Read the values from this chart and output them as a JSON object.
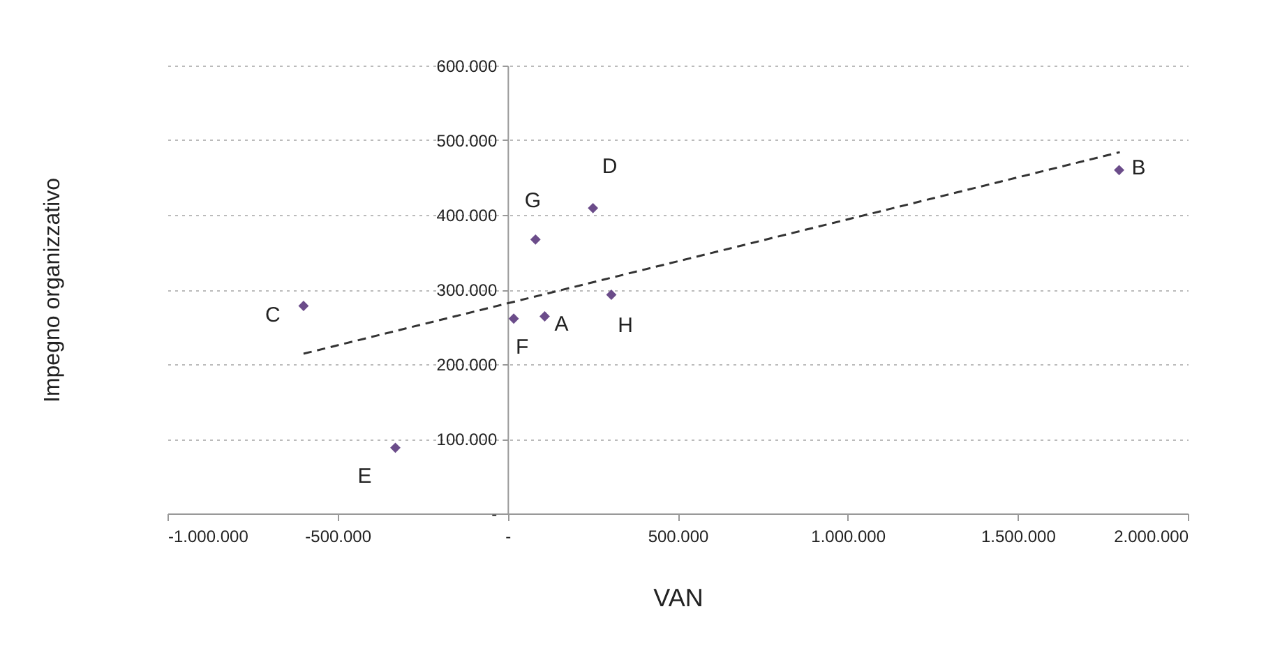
{
  "chart_data": {
    "type": "scatter",
    "xlabel": "VAN",
    "ylabel": "Impegno organizzativo",
    "series": [
      {
        "color": "#6b4c8a",
        "marker": "diamond",
        "x": [
          109000,
          1798000,
          -600000,
          251000,
          -330000,
          18000,
          82000,
          305000
        ],
        "values": [
          264000,
          460000,
          278000,
          409000,
          88000,
          261000,
          367000,
          293000
        ]
      },
      {
        "type": "line",
        "color": "#333333",
        "marker": "none",
        "line_style": "dashed",
        "x": [
          -600000,
          1800000
        ],
        "values": [
          214000,
          484000
        ]
      }
    ],
    "annotations": [
      {
        "text": "A",
        "x": 109000,
        "y": 264000
      },
      {
        "text": "B",
        "x": 1798000,
        "y": 460000
      },
      {
        "text": "C",
        "x": -600000,
        "y": 278000
      },
      {
        "text": "D",
        "x": 251000,
        "y": 409000
      },
      {
        "text": "E",
        "x": -330000,
        "y": 88000
      },
      {
        "text": "F",
        "x": 18000,
        "y": 261000
      },
      {
        "text": "G",
        "x": 82000,
        "y": 367000
      },
      {
        "text": "H",
        "x": 305000,
        "y": 293000
      }
    ],
    "xlim": [
      -1000000,
      2000000
    ],
    "xticks": [
      {
        "value": -1000000,
        "label": "-1.000.000"
      },
      {
        "value": -500000,
        "label": "-500.000"
      },
      {
        "value": 0,
        "label": "-"
      },
      {
        "value": 500000,
        "label": "500.000"
      },
      {
        "value": 1000000,
        "label": "1.000.000"
      },
      {
        "value": 1500000,
        "label": "1.500.000"
      },
      {
        "value": 2000000,
        "label": "2.000.000"
      }
    ],
    "ylim": [
      0,
      600000
    ],
    "yticks": [
      {
        "value": 0,
        "label": "-"
      },
      {
        "value": 100000,
        "label": "100.000"
      },
      {
        "value": 200000,
        "label": "200.000"
      },
      {
        "value": 300000,
        "label": "300.000"
      },
      {
        "value": 400000,
        "label": "400.000"
      },
      {
        "value": 500000,
        "label": "500.000"
      },
      {
        "value": 600000,
        "label": "600.000"
      }
    ],
    "grid": "y"
  }
}
